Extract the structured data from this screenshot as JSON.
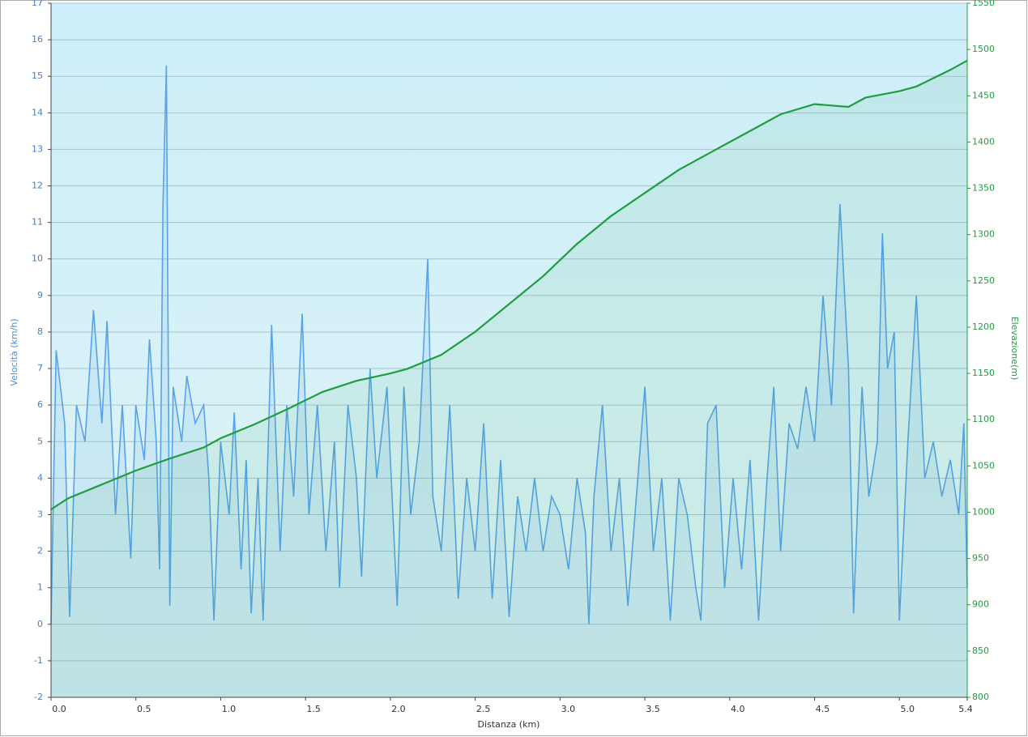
{
  "chart_data": {
    "type": "line",
    "x_label": "Distanza  (km)",
    "y_label": "Velocità (km/h)",
    "y2_label": "Elevazione(m)",
    "grid": true,
    "xlim": [
      0,
      5.4
    ],
    "xticks": [
      {
        "value": 0,
        "label": "0.0"
      },
      0.5,
      {
        "value": 1,
        "label": "1.0"
      },
      1.5,
      {
        "value": 2,
        "label": "2.0"
      },
      2.5,
      {
        "value": 3,
        "label": "3.0"
      },
      3.5,
      {
        "value": 4,
        "label": "4.0"
      },
      4.5,
      {
        "value": 5,
        "label": "5.0"
      },
      5.4
    ],
    "ylim": [
      -2,
      17
    ],
    "yticks": [
      -2,
      -1,
      0,
      1,
      2,
      3,
      4,
      5,
      6,
      7,
      8,
      9,
      10,
      11,
      12,
      13,
      14,
      15,
      16,
      17
    ],
    "y2lim": [
      800,
      1550
    ],
    "y2ticks": [
      800,
      850,
      900,
      950,
      1000,
      1050,
      1100,
      1150,
      1200,
      1250,
      1300,
      1350,
      1400,
      1450,
      1500,
      1550
    ],
    "series": [
      {
        "name": "Velocità",
        "color": "#58a3ea",
        "x": [
          0,
          0.03,
          0.08,
          0.11,
          0.15,
          0.2,
          0.25,
          0.3,
          0.33,
          0.38,
          0.42,
          0.47,
          0.5,
          0.55,
          0.58,
          0.62,
          0.64,
          0.66,
          0.68,
          0.7,
          0.72,
          0.77,
          0.8,
          0.85,
          0.9,
          0.93,
          0.96,
          1.0,
          1.05,
          1.08,
          1.12,
          1.15,
          1.18,
          1.22,
          1.25,
          1.3,
          1.35,
          1.39,
          1.43,
          1.48,
          1.52,
          1.57,
          1.62,
          1.67,
          1.7,
          1.75,
          1.8,
          1.83,
          1.88,
          1.92,
          1.98,
          2.04,
          2.08,
          2.12,
          2.17,
          2.22,
          2.25,
          2.3,
          2.35,
          2.4,
          2.45,
          2.5,
          2.55,
          2.6,
          2.65,
          2.7,
          2.75,
          2.8,
          2.85,
          2.9,
          2.95,
          3.0,
          3.05,
          3.1,
          3.15,
          3.17,
          3.2,
          3.25,
          3.3,
          3.35,
          3.4,
          3.45,
          3.5,
          3.55,
          3.6,
          3.65,
          3.7,
          3.75,
          3.8,
          3.83,
          3.87,
          3.92,
          3.97,
          4.02,
          4.07,
          4.12,
          4.17,
          4.22,
          4.26,
          4.3,
          4.35,
          4.4,
          4.45,
          4.5,
          4.55,
          4.6,
          4.65,
          4.7,
          4.73,
          4.78,
          4.82,
          4.87,
          4.9,
          4.93,
          4.97,
          5.0,
          5.05,
          5.1,
          5.15,
          5.2,
          5.25,
          5.3,
          5.35,
          5.38,
          5.4
        ],
        "values": [
          0,
          7.5,
          5.5,
          0.2,
          6,
          5,
          8.6,
          5.5,
          8.3,
          3,
          6,
          1.8,
          6,
          4.5,
          7.8,
          5,
          1.5,
          11.5,
          15.3,
          0.5,
          6.5,
          5,
          6.8,
          5.5,
          6,
          4,
          0.1,
          5,
          3,
          5.8,
          1.5,
          4.5,
          0.3,
          4,
          0.1,
          8.2,
          2,
          6,
          3.5,
          8.5,
          3,
          6,
          2,
          5,
          1,
          6,
          4,
          1.3,
          7,
          4,
          6.5,
          0.5,
          6.5,
          3,
          5,
          10,
          3.5,
          2,
          6,
          0.7,
          4,
          2,
          5.5,
          0.7,
          4.5,
          0.2,
          3.5,
          2,
          4,
          2,
          3.5,
          3,
          1.5,
          4,
          2.5,
          0,
          3.5,
          6,
          2,
          4,
          0.5,
          3.5,
          6.5,
          2,
          4,
          0.1,
          4,
          3,
          1,
          0.1,
          5.5,
          6,
          1,
          4,
          1.5,
          4.5,
          0.1,
          4,
          6.5,
          2,
          5.5,
          4.8,
          6.5,
          5,
          9,
          6,
          11.5,
          7,
          0.3,
          6.5,
          3.5,
          5,
          10.7,
          7,
          8,
          0.1,
          5,
          9,
          4,
          5,
          3.5,
          4.5,
          3,
          5.5,
          1
        ]
      },
      {
        "name": "Elevazione",
        "color": "#1f9d3f",
        "axis": "y2",
        "x": [
          0,
          0.1,
          0.3,
          0.5,
          0.7,
          0.9,
          1.0,
          1.2,
          1.4,
          1.6,
          1.8,
          2.0,
          2.1,
          2.3,
          2.5,
          2.7,
          2.9,
          3.1,
          3.3,
          3.5,
          3.7,
          3.9,
          4.1,
          4.3,
          4.5,
          4.7,
          4.8,
          5.0,
          5.1,
          5.3,
          5.4
        ],
        "values": [
          1003,
          1015,
          1030,
          1045,
          1058,
          1070,
          1080,
          1095,
          1112,
          1130,
          1142,
          1150,
          1155,
          1170,
          1195,
          1225,
          1255,
          1290,
          1320,
          1345,
          1370,
          1390,
          1410,
          1430,
          1441,
          1438,
          1448,
          1455,
          1460,
          1478,
          1488
        ]
      }
    ]
  }
}
